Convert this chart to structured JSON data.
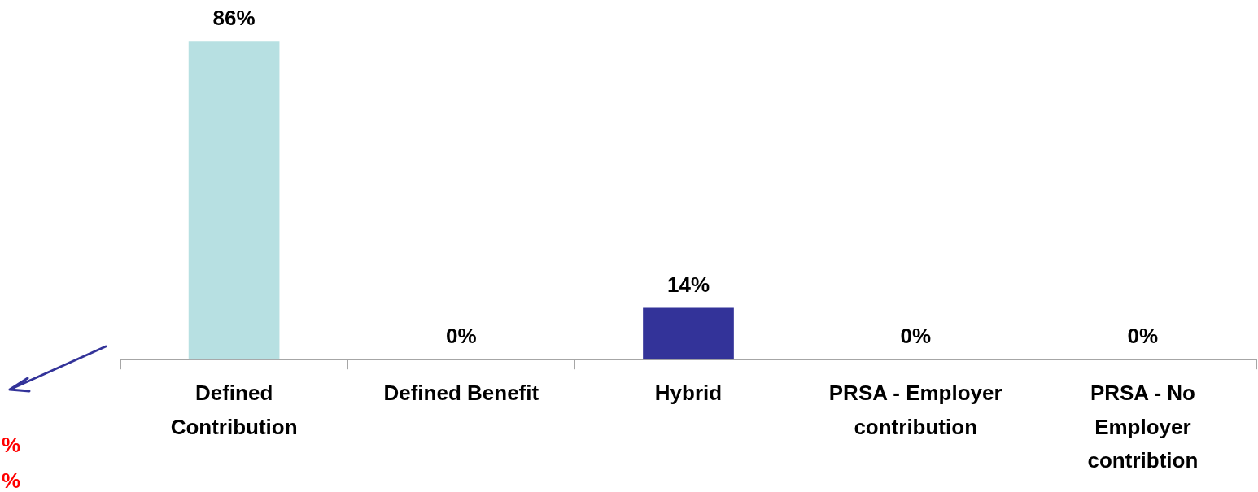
{
  "chart_data": {
    "type": "bar",
    "categories": [
      "Defined Contribution",
      "Defined Benefit",
      "Hybrid",
      "PRSA - Employer contribution",
      "PRSA - No Employer contribtion"
    ],
    "values": [
      86,
      0,
      14,
      0,
      0
    ],
    "colors": [
      "#b7e0e2",
      "#b7e0e2",
      "#333399",
      "#b7e0e2",
      "#b7e0e2"
    ],
    "value_labels": [
      "86%",
      "0%",
      "14%",
      "0%",
      "0%"
    ],
    "tick_labels": "x",
    "grid": false,
    "legend": false,
    "annotations": [
      "%",
      "%"
    ]
  }
}
